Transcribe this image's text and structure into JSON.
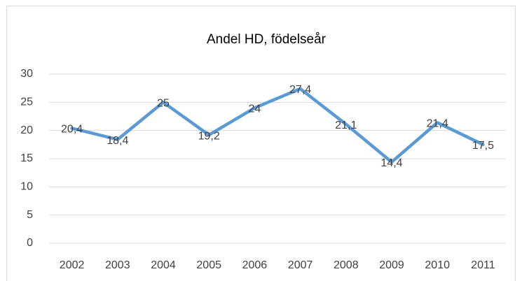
{
  "chart_data": {
    "type": "line",
    "title": "Andel HD, födelseår",
    "categories": [
      "2002",
      "2003",
      "2004",
      "2005",
      "2006",
      "2007",
      "2008",
      "2009",
      "2010",
      "2011"
    ],
    "values": [
      20.4,
      18.4,
      25,
      19.2,
      24,
      27.4,
      21.1,
      14.4,
      21.4,
      17.5
    ],
    "value_labels": [
      "20,4",
      "18,4",
      "25",
      "19,2",
      "24",
      "27,4",
      "21,1",
      "14,4",
      "21,4",
      "17,5"
    ],
    "color": "#5b9bd5",
    "ylim": [
      0,
      30
    ],
    "yticks": [
      0,
      5,
      10,
      15,
      20,
      25,
      30
    ],
    "grid": true
  }
}
